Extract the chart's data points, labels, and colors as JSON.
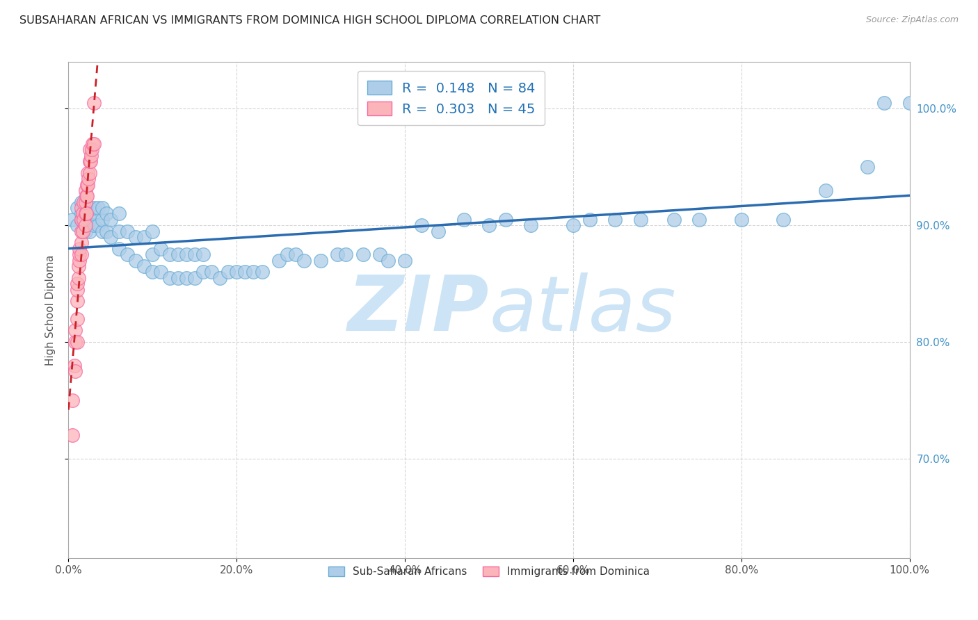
{
  "title": "SUBSAHARAN AFRICAN VS IMMIGRANTS FROM DOMINICA HIGH SCHOOL DIPLOMA CORRELATION CHART",
  "source": "Source: ZipAtlas.com",
  "ylabel": "High School Diploma",
  "legend_blue_label": "Sub-Saharan Africans",
  "legend_pink_label": "Immigrants from Dominica",
  "legend_blue_r": "R =  0.148",
  "legend_blue_n": "N = 84",
  "legend_pink_r": "R =  0.303",
  "legend_pink_n": "N = 45",
  "xlim": [
    0.0,
    1.0
  ],
  "ylim": [
    0.615,
    1.04
  ],
  "yticks_right": [
    0.7,
    0.8,
    0.9,
    1.0
  ],
  "yticklabels_right": [
    "70.0%",
    "80.0%",
    "90.0%",
    "100.0%"
  ],
  "blue_color": "#aecde8",
  "blue_edge": "#6baed6",
  "pink_color": "#fbb4b9",
  "pink_edge": "#f768a1",
  "blue_line_color": "#2b6cb0",
  "pink_line_color": "#cb2027",
  "blue_x": [
    0.005,
    0.01,
    0.01,
    0.015,
    0.015,
    0.015,
    0.02,
    0.02,
    0.02,
    0.025,
    0.025,
    0.025,
    0.03,
    0.03,
    0.03,
    0.035,
    0.035,
    0.04,
    0.04,
    0.04,
    0.045,
    0.045,
    0.05,
    0.05,
    0.06,
    0.06,
    0.06,
    0.07,
    0.07,
    0.08,
    0.08,
    0.09,
    0.09,
    0.1,
    0.1,
    0.1,
    0.11,
    0.11,
    0.12,
    0.12,
    0.13,
    0.13,
    0.14,
    0.14,
    0.15,
    0.15,
    0.16,
    0.16,
    0.17,
    0.18,
    0.19,
    0.2,
    0.21,
    0.22,
    0.23,
    0.25,
    0.26,
    0.27,
    0.28,
    0.3,
    0.32,
    0.33,
    0.35,
    0.37,
    0.38,
    0.4,
    0.42,
    0.44,
    0.47,
    0.5,
    0.52,
    0.55,
    0.6,
    0.62,
    0.65,
    0.68,
    0.72,
    0.75,
    0.8,
    0.85,
    0.9,
    0.95,
    0.97,
    1.0
  ],
  "blue_y": [
    0.905,
    0.9,
    0.915,
    0.905,
    0.91,
    0.92,
    0.895,
    0.9,
    0.91,
    0.895,
    0.905,
    0.915,
    0.9,
    0.91,
    0.915,
    0.9,
    0.915,
    0.895,
    0.905,
    0.915,
    0.895,
    0.91,
    0.89,
    0.905,
    0.88,
    0.895,
    0.91,
    0.875,
    0.895,
    0.87,
    0.89,
    0.865,
    0.89,
    0.86,
    0.875,
    0.895,
    0.86,
    0.88,
    0.855,
    0.875,
    0.855,
    0.875,
    0.855,
    0.875,
    0.855,
    0.875,
    0.86,
    0.875,
    0.86,
    0.855,
    0.86,
    0.86,
    0.86,
    0.86,
    0.86,
    0.87,
    0.875,
    0.875,
    0.87,
    0.87,
    0.875,
    0.875,
    0.875,
    0.875,
    0.87,
    0.87,
    0.9,
    0.895,
    0.905,
    0.9,
    0.905,
    0.9,
    0.9,
    0.905,
    0.905,
    0.905,
    0.905,
    0.905,
    0.905,
    0.905,
    0.93,
    0.95,
    1.005,
    1.005
  ],
  "pink_x": [
    0.005,
    0.005,
    0.007,
    0.008,
    0.008,
    0.008,
    0.01,
    0.01,
    0.01,
    0.01,
    0.01,
    0.012,
    0.012,
    0.013,
    0.013,
    0.013,
    0.015,
    0.015,
    0.015,
    0.015,
    0.015,
    0.017,
    0.017,
    0.018,
    0.018,
    0.02,
    0.02,
    0.02,
    0.02,
    0.021,
    0.021,
    0.022,
    0.022,
    0.023,
    0.023,
    0.024,
    0.025,
    0.025,
    0.025,
    0.026,
    0.027,
    0.028,
    0.029,
    0.03,
    0.03
  ],
  "pink_y": [
    0.72,
    0.75,
    0.78,
    0.8,
    0.81,
    0.775,
    0.82,
    0.835,
    0.845,
    0.85,
    0.8,
    0.855,
    0.865,
    0.87,
    0.875,
    0.88,
    0.875,
    0.885,
    0.895,
    0.905,
    0.915,
    0.895,
    0.91,
    0.905,
    0.92,
    0.9,
    0.91,
    0.92,
    0.93,
    0.91,
    0.925,
    0.925,
    0.935,
    0.935,
    0.945,
    0.94,
    0.945,
    0.955,
    0.965,
    0.955,
    0.96,
    0.965,
    0.97,
    0.97,
    1.005
  ],
  "watermark_zip": "ZIP",
  "watermark_atlas": "atlas",
  "watermark_color": "#cce4f5",
  "figsize": [
    14.06,
    8.92
  ],
  "dpi": 100
}
